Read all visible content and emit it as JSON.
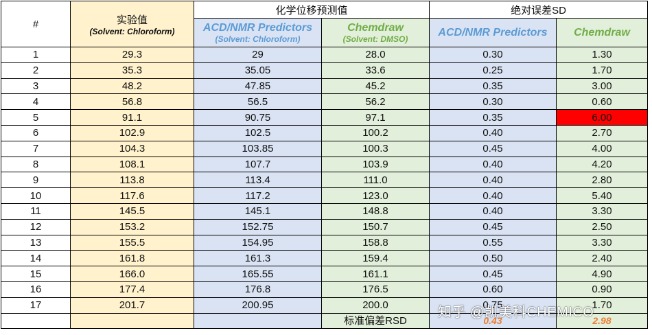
{
  "header": {
    "index_label": "#",
    "experimental_title": "实验值",
    "experimental_solvent": "(Solvent: Chloroform)",
    "predicted_group": "化学位移预测值",
    "abs_error_group": "绝对误差SD",
    "acd_title": "ACD/NMR Predictors",
    "acd_solvent": "(Solvent: Chloroform)",
    "chemdraw_title": "Chemdraw",
    "chemdraw_solvent": "(Solvent: DMSO)",
    "sd_acd_title": "ACD/NMR Predictors",
    "sd_chemdraw_title": "Chemdraw"
  },
  "rows": [
    {
      "n": "1",
      "exp": "29.3",
      "acd": "29",
      "cd": "28.0",
      "sd_acd": "0.30",
      "sd_cd": "1.30"
    },
    {
      "n": "2",
      "exp": "35.3",
      "acd": "35.05",
      "cd": "33.6",
      "sd_acd": "0.25",
      "sd_cd": "1.70"
    },
    {
      "n": "3",
      "exp": "48.2",
      "acd": "47.85",
      "cd": "45.2",
      "sd_acd": "0.35",
      "sd_cd": "3.00"
    },
    {
      "n": "4",
      "exp": "56.8",
      "acd": "56.5",
      "cd": "56.2",
      "sd_acd": "0.30",
      "sd_cd": "0.60"
    },
    {
      "n": "5",
      "exp": "91.1",
      "acd": "90.75",
      "cd": "97.1",
      "sd_acd": "0.35",
      "sd_cd": "6.00"
    },
    {
      "n": "6",
      "exp": "102.9",
      "acd": "102.5",
      "cd": "100.2",
      "sd_acd": "0.40",
      "sd_cd": "2.70"
    },
    {
      "n": "7",
      "exp": "104.3",
      "acd": "103.85",
      "cd": "100.3",
      "sd_acd": "0.45",
      "sd_cd": "4.00"
    },
    {
      "n": "8",
      "exp": "108.1",
      "acd": "107.7",
      "cd": "103.9",
      "sd_acd": "0.40",
      "sd_cd": "4.20"
    },
    {
      "n": "9",
      "exp": "113.8",
      "acd": "113.4",
      "cd": "111.0",
      "sd_acd": "0.40",
      "sd_cd": "2.80"
    },
    {
      "n": "10",
      "exp": "117.6",
      "acd": "117.2",
      "cd": "123.0",
      "sd_acd": "0.40",
      "sd_cd": "5.40"
    },
    {
      "n": "11",
      "exp": "145.5",
      "acd": "145.1",
      "cd": "148.8",
      "sd_acd": "0.40",
      "sd_cd": "3.30"
    },
    {
      "n": "12",
      "exp": "153.2",
      "acd": "152.75",
      "cd": "150.7",
      "sd_acd": "0.45",
      "sd_cd": "2.50"
    },
    {
      "n": "13",
      "exp": "155.5",
      "acd": "154.95",
      "cd": "158.8",
      "sd_acd": "0.55",
      "sd_cd": "3.30"
    },
    {
      "n": "14",
      "exp": "161.8",
      "acd": "161.3",
      "cd": "159.4",
      "sd_acd": "0.50",
      "sd_cd": "2.40"
    },
    {
      "n": "15",
      "exp": "166.0",
      "acd": "165.55",
      "cd": "161.1",
      "sd_acd": "0.45",
      "sd_cd": "4.90"
    },
    {
      "n": "16",
      "exp": "177.4",
      "acd": "176.8",
      "cd": "176.5",
      "sd_acd": "0.60",
      "sd_cd": "0.90"
    },
    {
      "n": "17",
      "exp": "201.7",
      "acd": "200.95",
      "cd": "200.0",
      "sd_acd": "0.75",
      "sd_cd": "1.70"
    }
  ],
  "highlight": {
    "row": 4,
    "column": "sd_cd",
    "color": "#ff0000"
  },
  "footer": {
    "rsd_label": "标准偏差RSD",
    "rsd_acd": "0.43",
    "rsd_chemdraw": "2.98"
  },
  "watermark": "知乎 @凯美科CHEMICO",
  "colors": {
    "experimental_bg": "#fff2cc",
    "acd_bg": "#dae3f3",
    "chemdraw_bg": "#e2efda",
    "acd_text": "#5b9bd5",
    "chemdraw_text": "#70ad47",
    "rsd_text": "#ed7d31"
  }
}
